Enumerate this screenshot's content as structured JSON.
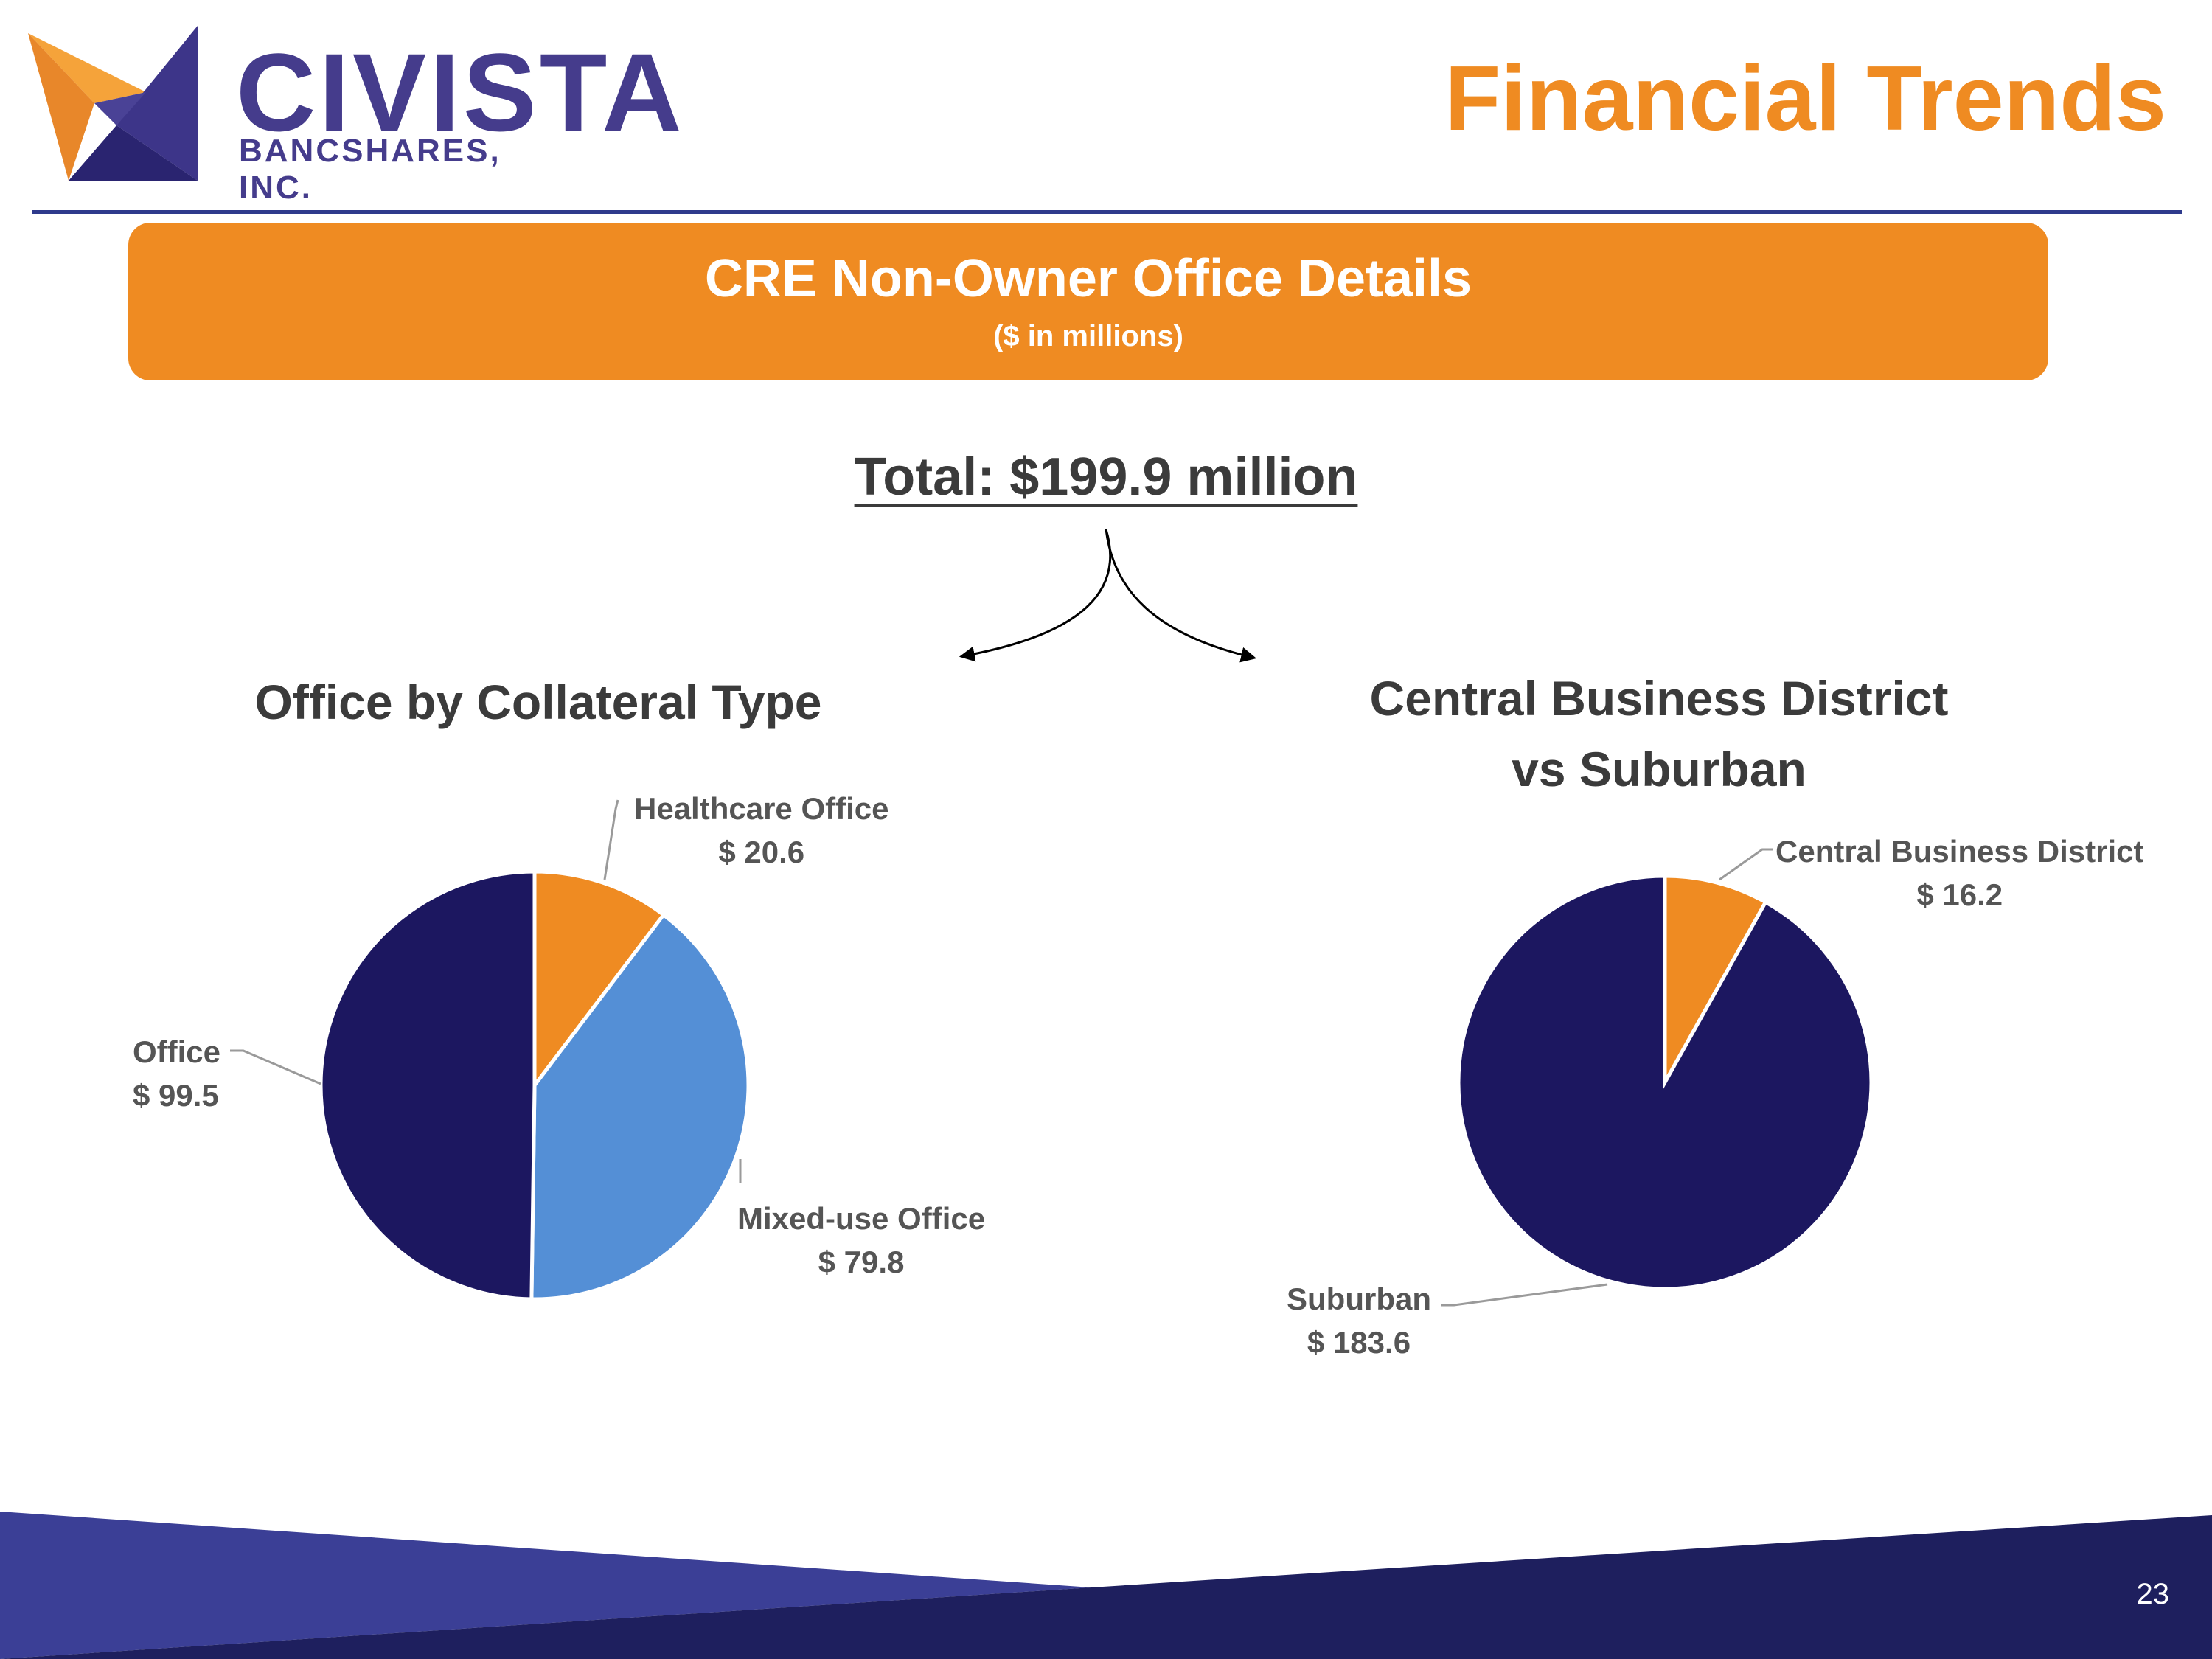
{
  "header": {
    "logo_word": "CIVISTA",
    "logo_sub": "BANCSHARES, INC.",
    "title": "Financial Trends"
  },
  "banner": {
    "title": "CRE Non-Owner Office Details",
    "subtitle": "($ in millions)"
  },
  "total": "Total: $199.9 million",
  "colors": {
    "orange": "#ef8b22",
    "navy": "#1c1760",
    "blue": "#548fd6",
    "footer_light": "#3b3f96",
    "footer_dark": "#1e1f5e"
  },
  "chart_data": [
    {
      "type": "pie",
      "title": "Office by Collateral Type",
      "slices": [
        {
          "label": "Healthcare Office",
          "value": 20.6,
          "value_label": "$ 20.6",
          "color": "#ef8b22"
        },
        {
          "label": "Mixed-use Office",
          "value": 79.8,
          "value_label": "$ 79.8",
          "color": "#548fd6"
        },
        {
          "label": "Office",
          "value": 99.5,
          "value_label": "$ 99.5",
          "color": "#1c1760"
        }
      ]
    },
    {
      "type": "pie",
      "title": "Central Business District vs Suburban",
      "title_lines": [
        "Central Business District",
        "vs Suburban"
      ],
      "slices": [
        {
          "label": "Central Business District",
          "value": 16.2,
          "value_label": "$ 16.2",
          "color": "#ef8b22"
        },
        {
          "label": "Suburban",
          "value": 183.6,
          "value_label": "$ 183.6",
          "color": "#1c1760"
        }
      ]
    }
  ],
  "footer": {
    "page_number": "23"
  }
}
